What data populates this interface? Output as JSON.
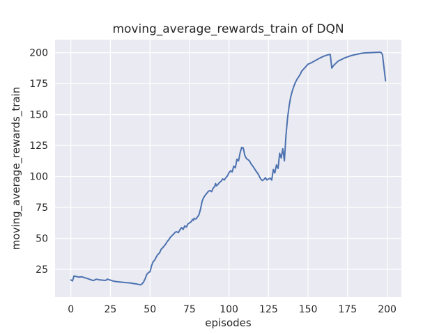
{
  "chart_data": {
    "type": "line",
    "title": "moving_average_rewards_train of DQN",
    "xlabel": "episodes",
    "ylabel": "moving_average_rewards_train",
    "x_ticks": [
      0,
      25,
      50,
      75,
      100,
      125,
      150,
      175,
      200
    ],
    "y_ticks": [
      25,
      50,
      75,
      100,
      125,
      150,
      175,
      200
    ],
    "xlim": [
      -10,
      209
    ],
    "ylim": [
      2.5,
      210.5
    ],
    "grid": true,
    "legend_position": "none",
    "style": {
      "figure_bg": "#ffffff",
      "axes_bg": "#eaeaf2",
      "grid_color": "#ffffff",
      "line_color": "#4c72b0",
      "text_color": "#262626"
    },
    "series": [
      {
        "name": "moving_average_rewards_train of DQN",
        "points": [
          [
            0,
            16.4
          ],
          [
            1,
            15.6
          ],
          [
            2,
            19.6
          ],
          [
            3,
            19.3
          ],
          [
            5,
            18.7
          ],
          [
            7,
            18.9
          ],
          [
            9,
            18.1
          ],
          [
            11,
            17.3
          ],
          [
            13,
            16.4
          ],
          [
            14,
            15.9
          ],
          [
            15,
            16.3
          ],
          [
            16,
            17.0
          ],
          [
            18,
            16.5
          ],
          [
            20,
            16.2
          ],
          [
            22,
            16.0
          ],
          [
            23,
            17.0
          ],
          [
            25,
            16.2
          ],
          [
            27,
            15.4
          ],
          [
            29,
            15.0
          ],
          [
            31,
            14.7
          ],
          [
            34,
            14.3
          ],
          [
            37,
            14.0
          ],
          [
            40,
            13.4
          ],
          [
            42,
            13.0
          ],
          [
            44,
            12.4
          ],
          [
            45,
            13.2
          ],
          [
            46,
            14.8
          ],
          [
            47,
            17.5
          ],
          [
            48,
            20.9
          ],
          [
            49,
            22.3
          ],
          [
            50,
            23.0
          ],
          [
            50.5,
            25.0
          ],
          [
            51,
            27.8
          ],
          [
            52,
            31.0
          ],
          [
            53,
            32.5
          ],
          [
            54,
            34.8
          ],
          [
            55,
            37.0
          ],
          [
            56,
            38.1
          ],
          [
            57,
            41.0
          ],
          [
            58,
            42.3
          ],
          [
            59,
            43.8
          ],
          [
            60,
            45.5
          ],
          [
            61,
            47.5
          ],
          [
            62,
            49.0
          ],
          [
            63,
            51.0
          ],
          [
            64,
            52.2
          ],
          [
            65,
            53.5
          ],
          [
            66,
            55.0
          ],
          [
            67,
            55.3
          ],
          [
            68,
            54.6
          ],
          [
            69,
            57.0
          ],
          [
            70,
            58.7
          ],
          [
            71,
            57.2
          ],
          [
            72,
            60.0
          ],
          [
            73,
            59.1
          ],
          [
            74,
            61.5
          ],
          [
            75,
            62.5
          ],
          [
            76,
            63.4
          ],
          [
            77,
            65.3
          ],
          [
            77.5,
            64.5
          ],
          [
            78,
            66.2
          ],
          [
            79,
            65.6
          ],
          [
            80,
            67.1
          ],
          [
            81,
            69.0
          ],
          [
            82,
            73.7
          ],
          [
            83,
            80.0
          ],
          [
            84,
            83.0
          ],
          [
            85,
            84.9
          ],
          [
            86,
            86.5
          ],
          [
            87,
            88.0
          ],
          [
            88,
            88.6
          ],
          [
            89,
            87.7
          ],
          [
            90,
            90.5
          ],
          [
            91,
            92.0
          ],
          [
            91.5,
            94.3
          ],
          [
            92,
            92.4
          ],
          [
            93,
            93.5
          ],
          [
            94,
            95.2
          ],
          [
            95,
            96.1
          ],
          [
            96,
            98.0
          ],
          [
            97,
            97.1
          ],
          [
            98,
            99.0
          ],
          [
            99,
            100.5
          ],
          [
            100,
            103.0
          ],
          [
            101,
            104.6
          ],
          [
            102,
            103.7
          ],
          [
            103,
            108.4
          ],
          [
            104,
            106.9
          ],
          [
            105,
            114.0
          ],
          [
            106,
            112.5
          ],
          [
            107,
            119.0
          ],
          [
            108,
            123.5
          ],
          [
            109,
            123.0
          ],
          [
            110,
            117.0
          ],
          [
            111,
            114.5
          ],
          [
            112,
            113.5
          ],
          [
            113,
            112.5
          ],
          [
            114,
            110.0
          ],
          [
            115,
            108.4
          ],
          [
            116,
            106.5
          ],
          [
            117,
            104.5
          ],
          [
            118,
            102.8
          ],
          [
            119,
            100.5
          ],
          [
            120,
            98.0
          ],
          [
            121,
            96.7
          ],
          [
            122,
            97.4
          ],
          [
            123,
            99.0
          ],
          [
            124,
            97.1
          ],
          [
            125,
            98.0
          ],
          [
            126,
            98.6
          ],
          [
            127,
            97.1
          ],
          [
            128,
            105.6
          ],
          [
            129,
            102.8
          ],
          [
            130,
            109.3
          ],
          [
            131,
            106.5
          ],
          [
            132,
            118.7
          ],
          [
            133,
            114.9
          ],
          [
            134,
            122.4
          ],
          [
            135,
            112.5
          ],
          [
            136,
            132.7
          ],
          [
            137,
            147.0
          ],
          [
            138,
            157.0
          ],
          [
            139,
            164.0
          ],
          [
            140,
            169.0
          ],
          [
            141,
            172.9
          ],
          [
            142,
            176.0
          ],
          [
            143,
            178.5
          ],
          [
            144,
            180.4
          ],
          [
            145,
            182.5
          ],
          [
            146,
            185.1
          ],
          [
            147,
            186.5
          ],
          [
            148,
            187.9
          ],
          [
            149,
            189.3
          ],
          [
            150,
            190.7
          ],
          [
            152,
            191.8
          ],
          [
            154,
            193.2
          ],
          [
            156,
            194.6
          ],
          [
            158,
            196.0
          ],
          [
            160,
            197.2
          ],
          [
            162,
            198.0
          ],
          [
            163,
            198.4
          ],
          [
            164,
            198.6
          ],
          [
            165,
            187.5
          ],
          [
            166,
            189.5
          ],
          [
            167,
            190.7
          ],
          [
            169,
            193.2
          ],
          [
            171,
            194.4
          ],
          [
            173,
            195.7
          ],
          [
            175,
            196.6
          ],
          [
            177,
            197.5
          ],
          [
            179,
            198.2
          ],
          [
            181,
            198.7
          ],
          [
            183,
            199.3
          ],
          [
            185,
            199.7
          ],
          [
            187,
            199.9
          ],
          [
            189,
            200.0
          ],
          [
            191,
            200.1
          ],
          [
            193,
            200.2
          ],
          [
            195,
            200.3
          ],
          [
            196,
            200.3
          ],
          [
            197,
            198.5
          ],
          [
            198,
            188.0
          ],
          [
            199,
            177.3
          ]
        ]
      }
    ]
  }
}
